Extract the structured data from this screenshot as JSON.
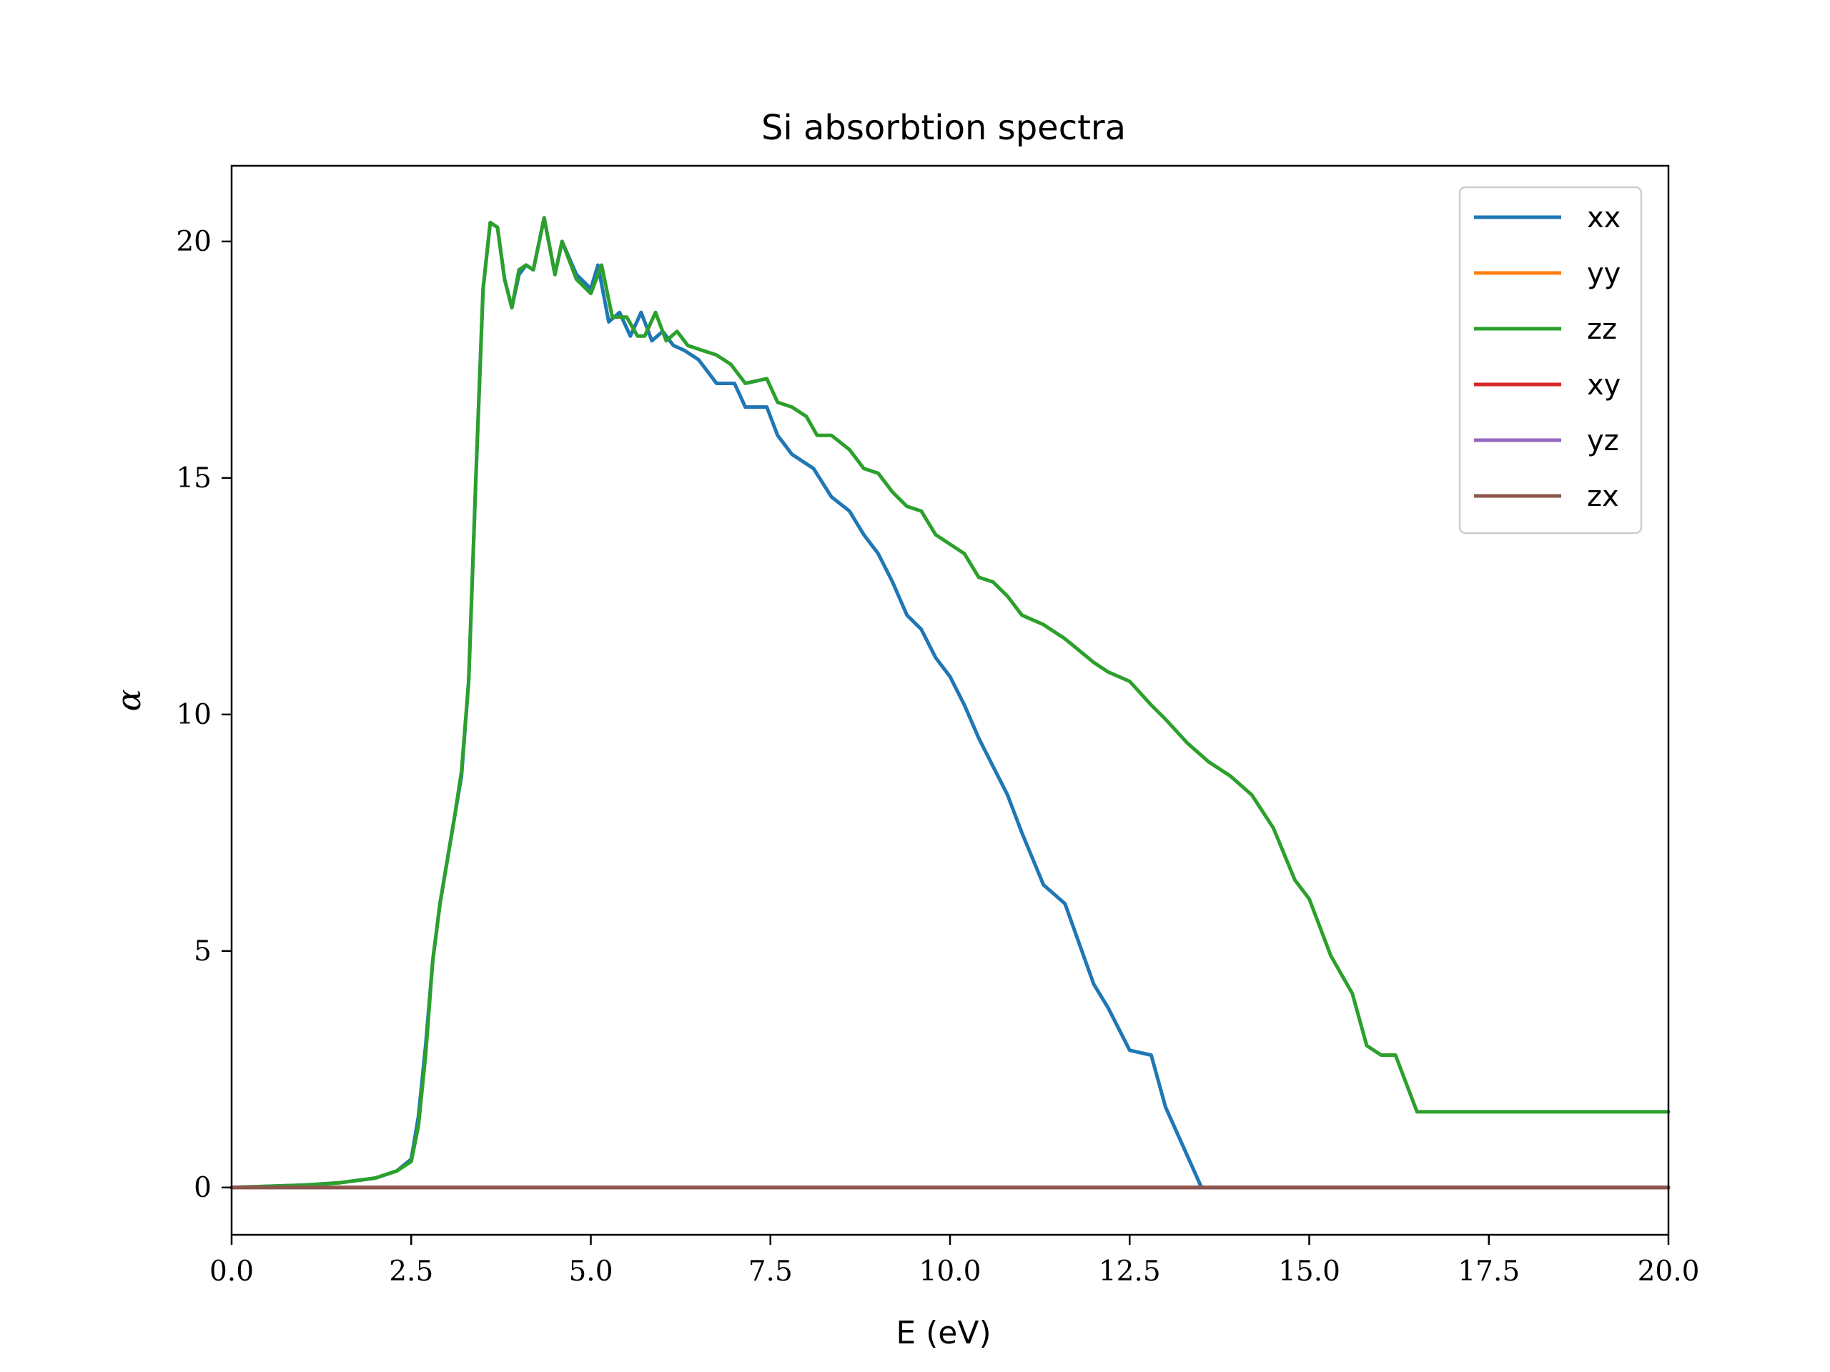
{
  "chart_data": {
    "type": "line",
    "title": "Si absorbtion spectra",
    "xlabel": "E (eV)",
    "ylabel": "α",
    "xlim": [
      0,
      20
    ],
    "ylim": [
      -1,
      21.6
    ],
    "xticks": [
      0,
      2.5,
      5,
      7.5,
      10,
      12.5,
      15,
      17.5,
      20
    ],
    "xtick_labels": [
      "0.0",
      "2.5",
      "5.0",
      "7.5",
      "10.0",
      "12.5",
      "15.0",
      "17.5",
      "20.0"
    ],
    "yticks": [
      0,
      5,
      10,
      15,
      20
    ],
    "ytick_labels": [
      "0",
      "5",
      "10",
      "15",
      "20"
    ],
    "grid": false,
    "legend_position": "top-right",
    "series": [
      {
        "name": "xx",
        "color": "#1f77b4",
        "x": [
          0,
          1,
          1.5,
          2.0,
          2.3,
          2.5,
          2.6,
          2.7,
          2.8,
          2.9,
          3.0,
          3.1,
          3.2,
          3.3,
          3.4,
          3.5,
          3.6,
          3.7,
          3.8,
          3.9,
          4.0,
          4.1,
          4.2,
          4.35,
          4.5,
          4.6,
          4.8,
          5.0,
          5.1,
          5.25,
          5.4,
          5.55,
          5.7,
          5.85,
          6.0,
          6.15,
          6.3,
          6.5,
          6.75,
          7.0,
          7.15,
          7.45,
          7.6,
          7.8,
          8.1,
          8.35,
          8.6,
          8.8,
          9.0,
          9.2,
          9.4,
          9.6,
          9.8,
          10.0,
          10.2,
          10.4,
          10.6,
          10.8,
          11.0,
          11.3,
          11.6,
          12.0,
          12.2,
          12.5,
          12.8,
          13.0,
          13.5,
          13.8,
          14.2,
          14.6,
          15.0,
          15.3,
          15.8,
          16.1,
          16.5,
          16.9,
          17.3,
          17.6,
          17.9,
          18.2,
          18.5,
          18.8,
          19.0,
          19.2,
          19.4,
          19.7,
          19.9,
          20.0
        ],
        "values": [
          0.0,
          0.05,
          0.1,
          0.2,
          0.35,
          0.6,
          1.5,
          3.0,
          4.8,
          6.0,
          6.9,
          7.8,
          8.7,
          10.7,
          15.0,
          19.0,
          20.4,
          20.3,
          19.2,
          18.6,
          19.3,
          19.5,
          19.4,
          20.5,
          19.3,
          20.0,
          19.3,
          19.0,
          19.5,
          18.3,
          18.5,
          18.0,
          18.5,
          17.9,
          18.1,
          17.8,
          17.7,
          17.5,
          17.0,
          17.0,
          16.5,
          16.5,
          15.9,
          15.5,
          15.2,
          14.6,
          14.3,
          13.8,
          13.4,
          12.8,
          12.1,
          11.8,
          11.2,
          10.8,
          10.2,
          9.5,
          8.9,
          8.3,
          7.5,
          6.4,
          6.0,
          4.3,
          3.8,
          2.9,
          2.8,
          1.7,
          0,
          0,
          0,
          0,
          0,
          0,
          0,
          0,
          0,
          0,
          0,
          0,
          0,
          0,
          0,
          0,
          0,
          0,
          0,
          0,
          0,
          0
        ]
      },
      {
        "name": "yy",
        "color": "#ff7f0e",
        "values": []
      },
      {
        "name": "zz",
        "color": "#2ca02c",
        "x": [
          0,
          1.0,
          1.5,
          2.0,
          2.3,
          2.5,
          2.6,
          2.7,
          2.8,
          2.9,
          3.0,
          3.1,
          3.2,
          3.3,
          3.4,
          3.5,
          3.6,
          3.7,
          3.8,
          3.9,
          4.0,
          4.1,
          4.2,
          4.35,
          4.5,
          4.6,
          4.8,
          5.0,
          5.15,
          5.3,
          5.5,
          5.65,
          5.75,
          5.9,
          6.05,
          6.2,
          6.35,
          6.55,
          6.75,
          6.95,
          7.15,
          7.45,
          7.6,
          7.8,
          8.0,
          8.15,
          8.35,
          8.6,
          8.8,
          9.0,
          9.2,
          9.4,
          9.6,
          9.8,
          10.0,
          10.2,
          10.4,
          10.6,
          10.8,
          11.0,
          11.3,
          11.6,
          12.0,
          12.2,
          12.5,
          12.8,
          13.0,
          13.3,
          13.6,
          13.9,
          14.2,
          14.5,
          14.8,
          15.0,
          15.3,
          15.6,
          15.8,
          16.0,
          16.2,
          16.5,
          16.8,
          17.1,
          17.4,
          17.6,
          17.9,
          18.2,
          18.5,
          18.8,
          19.0,
          19.2,
          19.4,
          19.6,
          19.8,
          20.0
        ],
        "values": [
          0.0,
          0.05,
          0.1,
          0.2,
          0.35,
          0.55,
          1.3,
          2.8,
          4.8,
          6.0,
          6.9,
          7.8,
          8.8,
          10.7,
          15.0,
          19.0,
          20.4,
          20.3,
          19.2,
          18.6,
          19.4,
          19.5,
          19.4,
          20.5,
          19.3,
          20.0,
          19.2,
          18.9,
          19.5,
          18.4,
          18.4,
          18.0,
          18.0,
          18.5,
          17.9,
          18.1,
          17.8,
          17.7,
          17.6,
          17.4,
          17.0,
          17.1,
          16.6,
          16.5,
          16.3,
          15.9,
          15.9,
          15.6,
          15.2,
          15.1,
          14.7,
          14.4,
          14.3,
          13.8,
          13.6,
          13.4,
          12.9,
          12.8,
          12.5,
          12.1,
          11.9,
          11.6,
          11.1,
          10.9,
          10.7,
          10.2,
          9.9,
          9.4,
          9.0,
          8.7,
          8.3,
          7.6,
          6.5,
          6.1,
          4.9,
          4.1,
          3.0,
          2.8,
          2.8,
          1.6,
          1.6,
          1.6,
          1.6,
          1.6,
          1.6,
          1.6,
          1.6,
          1.6,
          1.6,
          1.6,
          1.6,
          1.6,
          1.6,
          1.6
        ]
      },
      {
        "name": "xy",
        "color": "#d62728",
        "x": [
          0,
          20
        ],
        "values": [
          0,
          0
        ]
      },
      {
        "name": "yz",
        "color": "#9467bd",
        "x": [
          0,
          20
        ],
        "values": [
          0,
          0
        ]
      },
      {
        "name": "zx",
        "color": "#8c564b",
        "x": [
          0,
          20
        ],
        "values": [
          0,
          0
        ]
      }
    ]
  }
}
